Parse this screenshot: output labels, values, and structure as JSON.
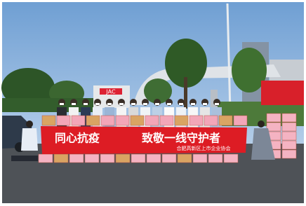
{
  "banner": {
    "slogan_left": "同心抗疫",
    "slogan_right": "致敬一线守护者",
    "organization": "合肥高新区上市企业协会"
  },
  "signs": {
    "truck": "JAC"
  }
}
